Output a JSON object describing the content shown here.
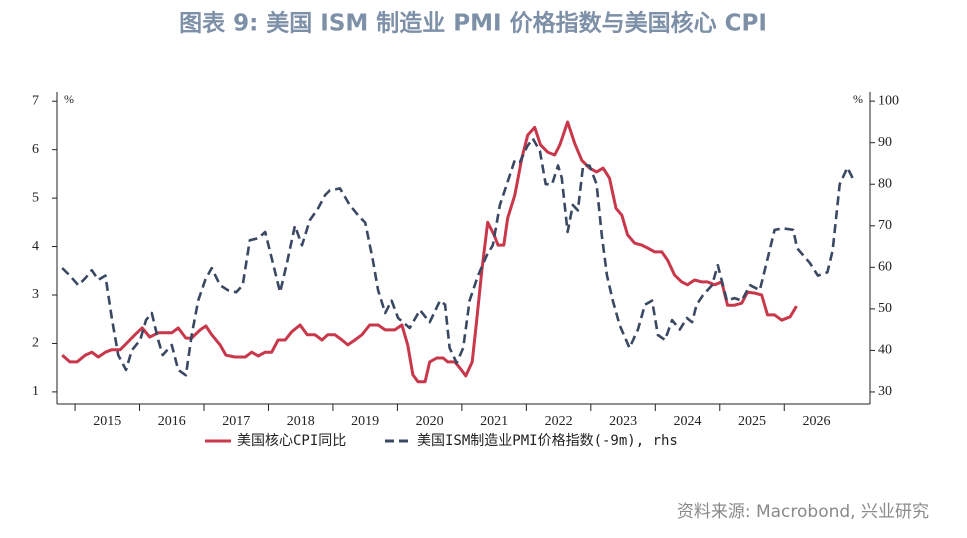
{
  "chart_data": {
    "type": "line",
    "title": "图表 9: 美国 ISM 制造业 PMI 价格指数与美国核心 CPI",
    "source": "资料来源: Macrobond, 兴业研究",
    "y_unit": "%",
    "y2_unit": "%",
    "xlim": [
      2014.72,
      2027.33
    ],
    "xticks": [
      2015,
      2016,
      2017,
      2018,
      2019,
      2020,
      2021,
      2022,
      2023,
      2024,
      2025,
      2026
    ],
    "ylim": [
      0.75,
      7.19
    ],
    "yticks": [
      1,
      2,
      3,
      4,
      5,
      6,
      7
    ],
    "y2lim": [
      27.1,
      102.2
    ],
    "y2ticks": [
      30,
      40,
      50,
      60,
      70,
      80,
      90,
      100
    ],
    "grid": false,
    "series": [
      {
        "name": "美国核心CPI同比",
        "color": "#c8374a",
        "axis": "y",
        "dashed": false,
        "x": [
          2014.8,
          2014.92,
          2015.03,
          2015.16,
          2015.26,
          2015.36,
          2015.47,
          2015.57,
          2015.7,
          2015.82,
          2015.93,
          2016.04,
          2016.16,
          2016.29,
          2016.4,
          2016.5,
          2016.6,
          2016.72,
          2016.81,
          2016.94,
          2017.03,
          2017.12,
          2017.25,
          2017.34,
          2017.48,
          2017.64,
          2017.74,
          2017.84,
          2017.95,
          2018.05,
          2018.15,
          2018.26,
          2018.36,
          2018.49,
          2018.6,
          2018.72,
          2018.83,
          2018.92,
          2019.03,
          2019.14,
          2019.23,
          2019.34,
          2019.45,
          2019.57,
          2019.7,
          2019.81,
          2019.96,
          2020.07,
          2020.16,
          2020.24,
          2020.32,
          2020.43,
          2020.5,
          2020.61,
          2020.71,
          2020.78,
          2020.89,
          2020.97,
          2021.06,
          2021.16,
          2021.23,
          2021.31,
          2021.4,
          2021.5,
          2021.56,
          2021.65,
          2021.71,
          2021.82,
          2021.93,
          2022.02,
          2022.13,
          2022.22,
          2022.33,
          2022.44,
          2022.52,
          2022.64,
          2022.75,
          2022.86,
          2022.98,
          2023.09,
          2023.19,
          2023.29,
          2023.39,
          2023.48,
          2023.57,
          2023.68,
          2023.79,
          2023.88,
          2023.99,
          2024.1,
          2024.19,
          2024.3,
          2024.41,
          2024.5,
          2024.61,
          2024.72,
          2024.81,
          2024.92,
          2025.03,
          2025.12,
          2025.23,
          2025.34,
          2025.43,
          2025.54,
          2025.65,
          2025.74,
          2025.85,
          2025.96,
          2026.09,
          2026.19
        ],
        "values": [
          1.76,
          1.62,
          1.62,
          1.76,
          1.82,
          1.72,
          1.82,
          1.87,
          1.87,
          2.03,
          2.18,
          2.32,
          2.13,
          2.22,
          2.22,
          2.22,
          2.32,
          2.11,
          2.11,
          2.28,
          2.36,
          2.18,
          1.97,
          1.76,
          1.72,
          1.72,
          1.82,
          1.74,
          1.82,
          1.82,
          2.07,
          2.07,
          2.24,
          2.38,
          2.18,
          2.18,
          2.07,
          2.18,
          2.18,
          2.07,
          1.97,
          2.07,
          2.18,
          2.38,
          2.38,
          2.28,
          2.28,
          2.38,
          1.97,
          1.35,
          1.21,
          1.21,
          1.62,
          1.7,
          1.7,
          1.62,
          1.62,
          1.49,
          1.33,
          1.62,
          2.48,
          3.52,
          4.5,
          4.24,
          4.03,
          4.03,
          4.59,
          5.06,
          5.82,
          6.3,
          6.46,
          6.1,
          5.95,
          5.89,
          6.1,
          6.57,
          6.13,
          5.78,
          5.62,
          5.54,
          5.62,
          5.41,
          4.79,
          4.65,
          4.24,
          4.07,
          4.03,
          3.97,
          3.89,
          3.89,
          3.72,
          3.41,
          3.27,
          3.21,
          3.31,
          3.27,
          3.27,
          3.21,
          3.27,
          2.79,
          2.79,
          2.83,
          3.06,
          3.04,
          3.0,
          2.59,
          2.59,
          2.48,
          2.55,
          2.77
        ]
      },
      {
        "name": "美国ISM制造业PMI价格指数(-9m), rhs",
        "color": "#3b4863",
        "axis": "y2",
        "dashed": true,
        "x": [
          2014.8,
          2014.92,
          2015.05,
          2015.16,
          2015.26,
          2015.36,
          2015.47,
          2015.57,
          2015.67,
          2015.79,
          2015.88,
          2016.01,
          2016.1,
          2016.19,
          2016.29,
          2016.36,
          2016.5,
          2016.6,
          2016.72,
          2016.81,
          2016.91,
          2017.02,
          2017.12,
          2017.25,
          2017.37,
          2017.5,
          2017.6,
          2017.71,
          2017.84,
          2017.95,
          2018.05,
          2018.18,
          2018.29,
          2018.41,
          2018.52,
          2018.64,
          2018.77,
          2018.88,
          2018.95,
          2019.11,
          2019.26,
          2019.42,
          2019.5,
          2019.62,
          2019.7,
          2019.81,
          2019.91,
          2020.01,
          2020.19,
          2020.35,
          2020.5,
          2020.66,
          2020.74,
          2020.81,
          2020.92,
          2021.02,
          2021.12,
          2021.25,
          2021.39,
          2021.48,
          2021.59,
          2021.74,
          2021.82,
          2021.9,
          2022.01,
          2022.1,
          2022.21,
          2022.3,
          2022.4,
          2022.49,
          2022.55,
          2022.64,
          2022.72,
          2022.8,
          2022.88,
          2022.98,
          2023.09,
          2023.17,
          2023.25,
          2023.34,
          2023.45,
          2023.6,
          2023.73,
          2023.84,
          2023.95,
          2024.04,
          2024.15,
          2024.26,
          2024.38,
          2024.49,
          2024.57,
          2024.64,
          2024.74,
          2024.88,
          2024.97,
          2025.11,
          2025.23,
          2025.34,
          2025.47,
          2025.62,
          2025.74,
          2025.85,
          2025.98,
          2026.14,
          2026.2,
          2026.29,
          2026.4,
          2026.52,
          2026.67,
          2026.75,
          2026.86,
          2026.98,
          2027.06
        ],
        "values": [
          59.8,
          58,
          55.7,
          57.4,
          59.3,
          57,
          58,
          47.8,
          38.9,
          35.3,
          40,
          42.5,
          47.3,
          49,
          42.5,
          38.9,
          41.3,
          35.3,
          34,
          43.7,
          52,
          57,
          59.8,
          55.7,
          54.5,
          54,
          55.7,
          66.5,
          67,
          68.5,
          62.2,
          54,
          61.3,
          70,
          65.3,
          71.3,
          74.2,
          77.4,
          78.5,
          79,
          75,
          72,
          70.8,
          61.7,
          54.5,
          49,
          52,
          47.8,
          45.4,
          49.7,
          46.8,
          52,
          51,
          40.6,
          37,
          40.6,
          52,
          58,
          63,
          65.3,
          75,
          82,
          85.8,
          85.3,
          89,
          91,
          88,
          80,
          80,
          84.5,
          81.5,
          68.5,
          75,
          73.7,
          84.5,
          84.5,
          80,
          67.7,
          58,
          52,
          46,
          40.6,
          45,
          51,
          52,
          43.7,
          42.5,
          47.3,
          45,
          47.8,
          46.8,
          51,
          53.3,
          55.7,
          60.5,
          52,
          52.6,
          52,
          55.7,
          54.5,
          62,
          69,
          69.4,
          69,
          64.6,
          63,
          61,
          58,
          58.8,
          64,
          80,
          84,
          81.5
        ]
      }
    ]
  }
}
